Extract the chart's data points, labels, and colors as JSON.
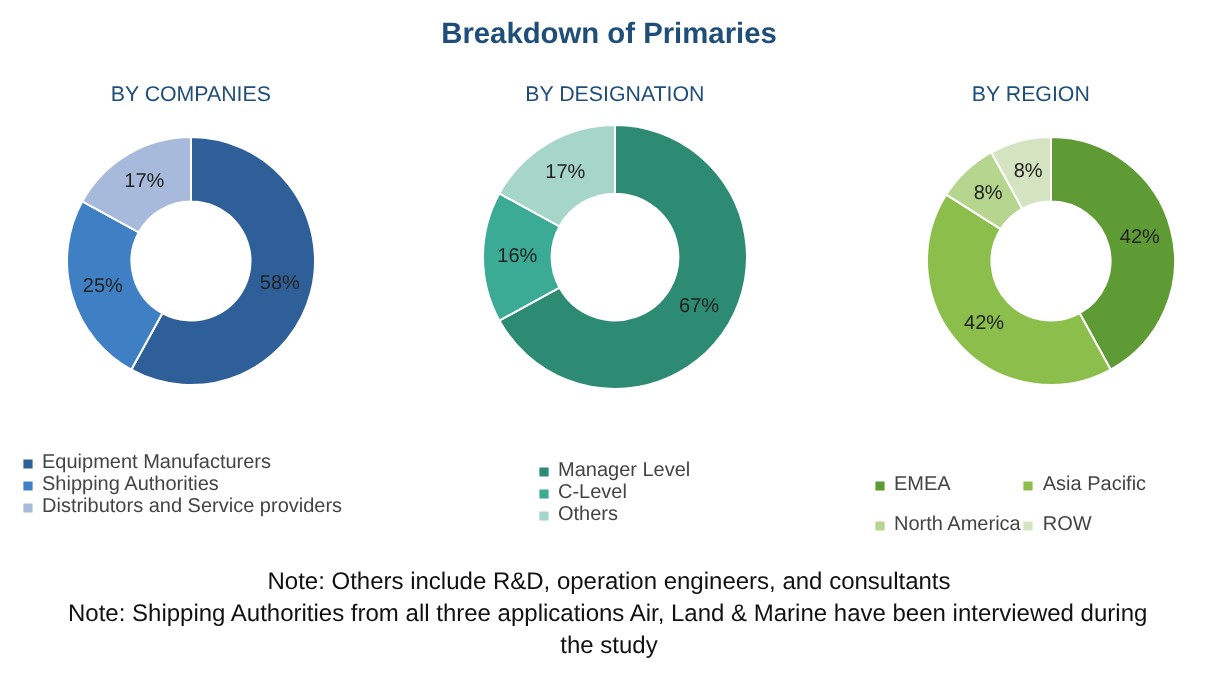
{
  "chart_data": [
    {
      "type": "donut",
      "subtitle": "BY COMPANIES",
      "categories": [
        "Equipment Manufacturers",
        "Shipping Authorities",
        "Distributors and Service providers"
      ],
      "values": [
        58,
        25,
        17
      ],
      "value_labels": [
        "58%",
        "25%",
        "17%"
      ],
      "colors": [
        "#2f5f98",
        "#3f7fc4",
        "#a8badb"
      ],
      "legend": "bottom"
    },
    {
      "type": "donut",
      "title": "Breakdown of Primaries",
      "subtitle": "BY DESIGNATION",
      "categories": [
        "Manager Level",
        "C-Level",
        "Others"
      ],
      "values": [
        67,
        16,
        17
      ],
      "value_labels": [
        "67%",
        "16%",
        "17%"
      ],
      "colors": [
        "#2d8a73",
        "#3bab95",
        "#a6d5c9"
      ],
      "legend": "bottom"
    },
    {
      "type": "donut",
      "subtitle": "BY REGION",
      "categories": [
        "EMEA",
        "Asia Pacific",
        "North America",
        "ROW"
      ],
      "values": [
        42,
        42,
        8,
        8
      ],
      "value_labels": [
        "42%",
        "42%",
        "8%",
        "8%"
      ],
      "colors": [
        "#5f9b34",
        "#8cbe4b",
        "#b6d58f",
        "#d4e4c0"
      ],
      "legend": "bottom",
      "annotations": [
        "Note: Others include R&D, operation engineers, and consultants",
        "Note: Shipping Authorities from all three applications Air, Land & Marine have been interviewed during the study"
      ]
    }
  ]
}
